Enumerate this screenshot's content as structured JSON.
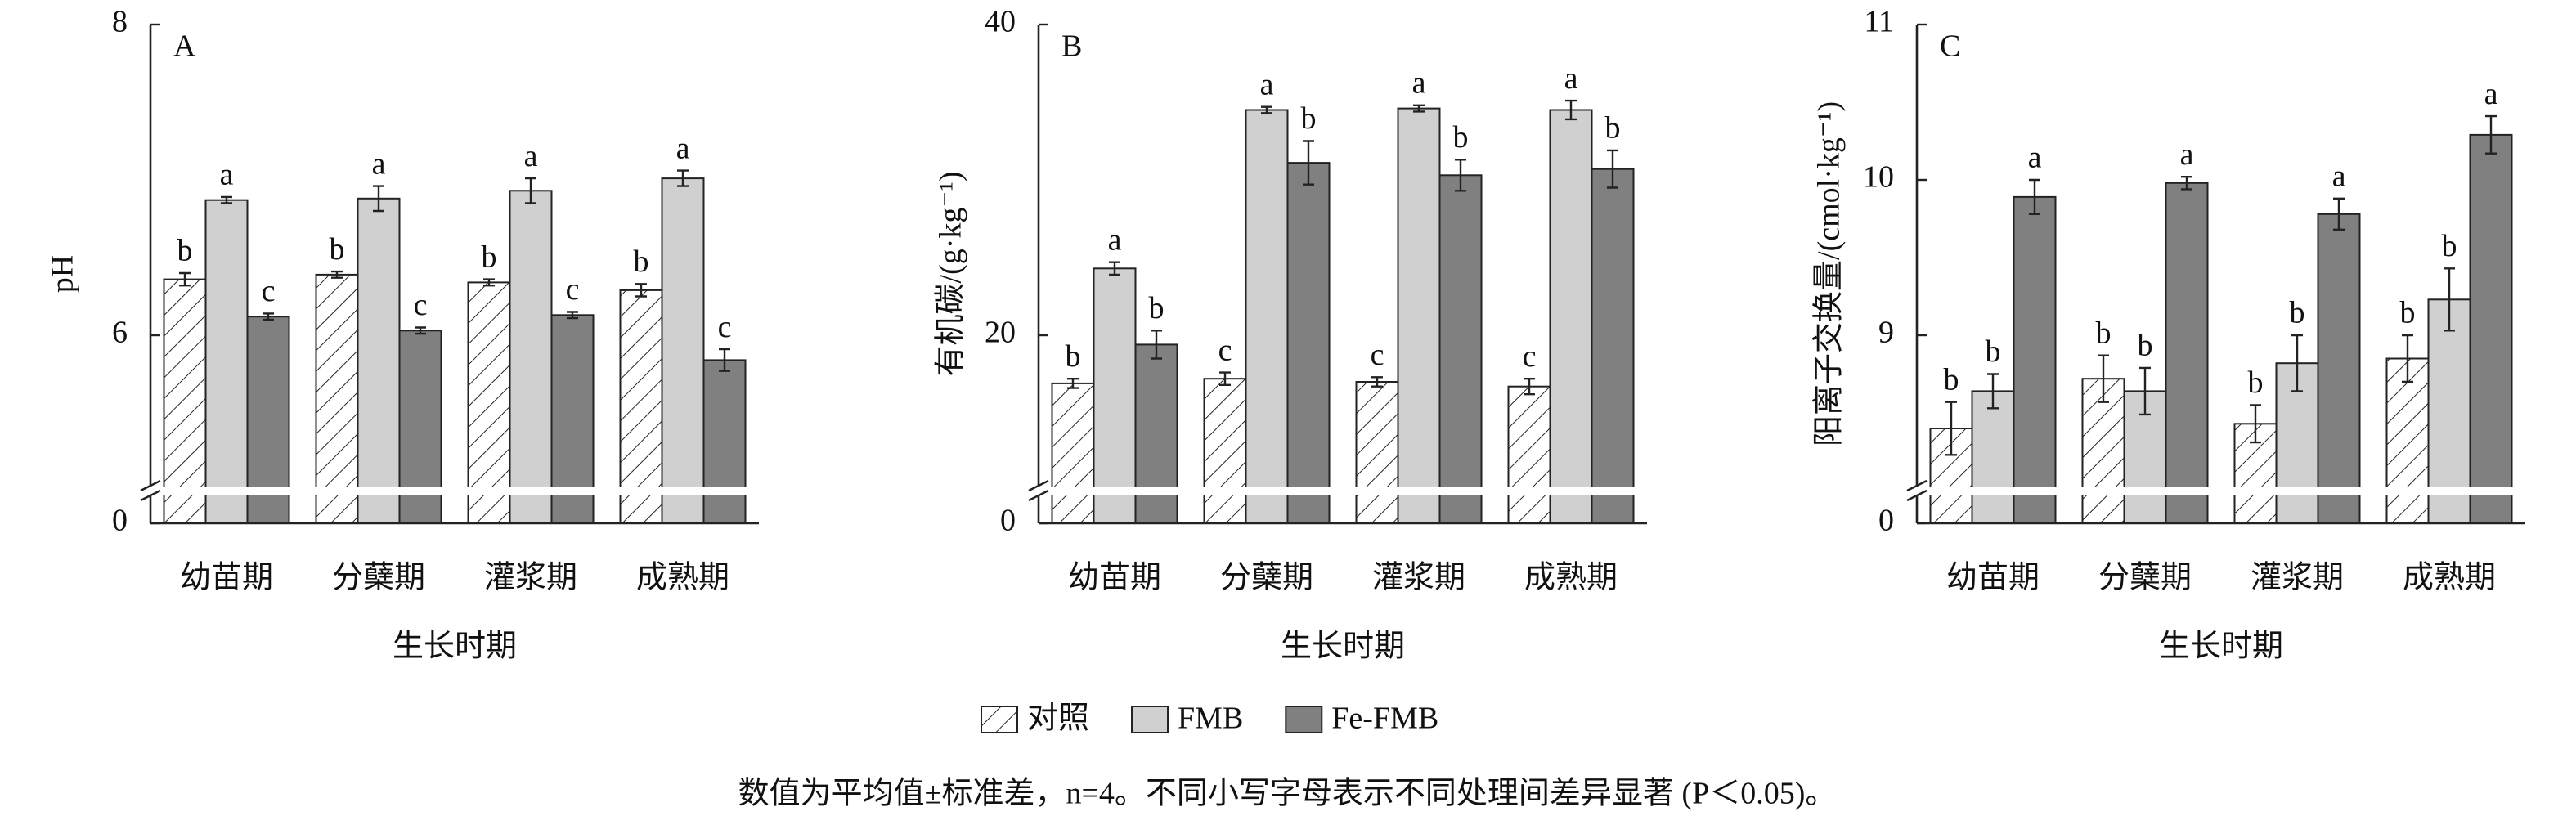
{
  "chart_data": [
    {
      "type": "bar",
      "panel": "A",
      "ylabel": "pH",
      "xlabel": "生长时期",
      "categories": [
        "幼苗期",
        "分蘖期",
        "灌浆期",
        "成熟期"
      ],
      "ylim": [
        0,
        8
      ],
      "ybreak": [
        0,
        5
      ],
      "yticks": [
        0,
        6,
        8
      ],
      "series": [
        {
          "name": "对照",
          "color": "#ffffff",
          "hatch": true,
          "values": [
            6.36,
            6.39,
            6.34,
            6.29
          ],
          "errors": [
            0.04,
            0.02,
            0.02,
            0.04
          ],
          "letters": [
            "b",
            "b",
            "b",
            "b"
          ]
        },
        {
          "name": "FMB",
          "color": "#d0d0d0",
          "values": [
            6.87,
            6.88,
            6.93,
            7.01
          ],
          "errors": [
            0.02,
            0.08,
            0.08,
            0.05
          ],
          "letters": [
            "a",
            "a",
            "a",
            "a"
          ]
        },
        {
          "name": "Fe-FMB",
          "color": "#808080",
          "values": [
            6.12,
            6.03,
            6.13,
            5.84
          ],
          "errors": [
            0.02,
            0.02,
            0.02,
            0.07
          ],
          "letters": [
            "c",
            "c",
            "c",
            "c"
          ]
        }
      ]
    },
    {
      "type": "bar",
      "panel": "B",
      "ylabel": "有机碳/(g·kg⁻¹)",
      "xlabel": "生长时期",
      "categories": [
        "幼苗期",
        "分蘖期",
        "灌浆期",
        "成熟期"
      ],
      "ylim": [
        0,
        40
      ],
      "ybreak": [
        0,
        10
      ],
      "yticks": [
        0,
        20,
        40
      ],
      "series": [
        {
          "name": "对照",
          "color": "#ffffff",
          "hatch": true,
          "values": [
            16.9,
            17.2,
            17.0,
            16.7
          ],
          "errors": [
            0.3,
            0.4,
            0.3,
            0.5
          ],
          "letters": [
            "b",
            "c",
            "c",
            "c"
          ]
        },
        {
          "name": "FMB",
          "color": "#d0d0d0",
          "values": [
            24.3,
            34.5,
            34.6,
            34.5
          ],
          "errors": [
            0.4,
            0.2,
            0.2,
            0.6
          ],
          "letters": [
            "a",
            "a",
            "a",
            "a"
          ]
        },
        {
          "name": "Fe-FMB",
          "color": "#808080",
          "values": [
            19.4,
            31.1,
            30.3,
            30.7
          ],
          "errors": [
            0.9,
            1.4,
            1.0,
            1.2
          ],
          "letters": [
            "b",
            "b",
            "b",
            "b"
          ]
        }
      ]
    },
    {
      "type": "bar",
      "panel": "C",
      "ylabel": "阳离子交换量/(cmol·kg⁻¹)",
      "xlabel": "生长时期",
      "categories": [
        "幼苗期",
        "分蘖期",
        "灌浆期",
        "成熟期"
      ],
      "ylim": [
        0,
        11
      ],
      "ybreak": [
        0,
        8
      ],
      "yticks": [
        0,
        9,
        10,
        11
      ],
      "series": [
        {
          "name": "对照",
          "color": "#ffffff",
          "hatch": true,
          "values": [
            8.4,
            8.72,
            8.43,
            8.85
          ],
          "errors": [
            0.17,
            0.15,
            0.12,
            0.15
          ],
          "letters": [
            "b",
            "b",
            "b",
            "b"
          ]
        },
        {
          "name": "FMB",
          "color": "#d0d0d0",
          "values": [
            8.64,
            8.64,
            8.82,
            9.23
          ],
          "errors": [
            0.11,
            0.15,
            0.18,
            0.2
          ],
          "letters": [
            "b",
            "b",
            "b",
            "b"
          ]
        },
        {
          "name": "Fe-FMB",
          "color": "#808080",
          "values": [
            9.89,
            9.98,
            9.78,
            10.29
          ],
          "errors": [
            0.11,
            0.04,
            0.1,
            0.12
          ],
          "letters": [
            "a",
            "a",
            "a",
            "a"
          ]
        }
      ]
    }
  ],
  "caption": "数值为平均值±标准差，n=4。不同小写字母表示不同处理间差异显著 (P＜0.05)。"
}
